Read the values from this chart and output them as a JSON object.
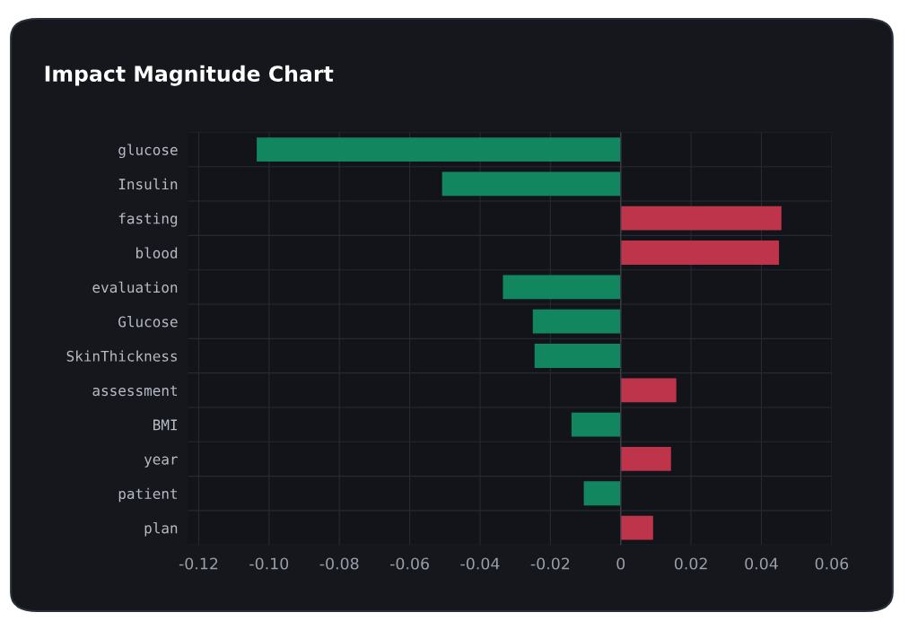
{
  "chart_data": {
    "type": "bar",
    "orientation": "horizontal",
    "title": "Impact Magnitude Chart",
    "categories": [
      "glucose",
      "Insulin",
      "fasting",
      "blood",
      "evaluation",
      "Glucose",
      "SkinThickness",
      "assessment",
      "BMI",
      "year",
      "patient",
      "plan"
    ],
    "values": [
      -0.1035,
      -0.0508,
      0.0457,
      0.045,
      -0.0335,
      -0.025,
      -0.0245,
      0.0158,
      -0.014,
      0.0143,
      -0.0105,
      0.0092
    ],
    "colors": [
      "#12875f",
      "#12875f",
      "#bd344b",
      "#bd344b",
      "#12875f",
      "#12875f",
      "#12875f",
      "#bd344b",
      "#12875f",
      "#bd344b",
      "#12875f",
      "#bd344b"
    ],
    "xlim": [
      -0.123,
      0.06
    ],
    "xticks": [
      -0.12,
      {
        "value": -0.1,
        "label": "-0.10"
      },
      -0.08,
      -0.06,
      -0.04,
      -0.02,
      0,
      0.02,
      0.04,
      0.06
    ],
    "grid": true
  }
}
